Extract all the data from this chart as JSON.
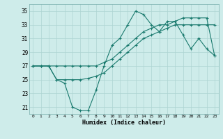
{
  "xlabel": "Humidex (Indice chaleur)",
  "background_color": "#ceecea",
  "grid_color": "#aed4d2",
  "line_color": "#1a7a6e",
  "xlim": [
    -0.5,
    23.5
  ],
  "ylim": [
    20,
    36
  ],
  "xticks": [
    0,
    1,
    2,
    3,
    4,
    5,
    6,
    7,
    8,
    9,
    10,
    11,
    12,
    13,
    14,
    15,
    16,
    17,
    18,
    19,
    20,
    21,
    22,
    23
  ],
  "yticks": [
    21,
    23,
    25,
    27,
    29,
    31,
    33,
    35
  ],
  "line1": {
    "x": [
      0,
      1,
      2,
      3,
      4,
      5,
      6,
      7,
      8,
      9,
      10,
      11,
      12,
      13,
      14,
      15,
      16,
      17,
      18,
      19,
      20,
      21,
      22,
      23
    ],
    "y": [
      27,
      27,
      27,
      25,
      24.5,
      21,
      20.5,
      20.5,
      23.5,
      27,
      30,
      31,
      33,
      35,
      34.5,
      33,
      32,
      33.5,
      33.5,
      31.5,
      29.5,
      31,
      29.5,
      28.5
    ]
  },
  "line2": {
    "x": [
      0,
      1,
      2,
      3,
      4,
      5,
      6,
      7,
      8,
      9,
      10,
      11,
      12,
      13,
      14,
      15,
      16,
      17,
      18,
      19,
      20,
      21,
      22,
      23
    ],
    "y": [
      27,
      27,
      27,
      25,
      25,
      25,
      25,
      25.2,
      25.5,
      26,
      27,
      28,
      29,
      30,
      31,
      31.5,
      32,
      32.5,
      33,
      33,
      33,
      33,
      33,
      33
    ]
  },
  "line3": {
    "x": [
      0,
      1,
      2,
      3,
      4,
      5,
      6,
      7,
      8,
      9,
      10,
      11,
      12,
      13,
      14,
      15,
      16,
      17,
      18,
      19,
      20,
      21,
      22,
      23
    ],
    "y": [
      27,
      27,
      27,
      27,
      27,
      27,
      27,
      27,
      27,
      27.5,
      28,
      29,
      30,
      31,
      32,
      32.5,
      33,
      33,
      33.5,
      34,
      34,
      34,
      34,
      28.5
    ]
  }
}
